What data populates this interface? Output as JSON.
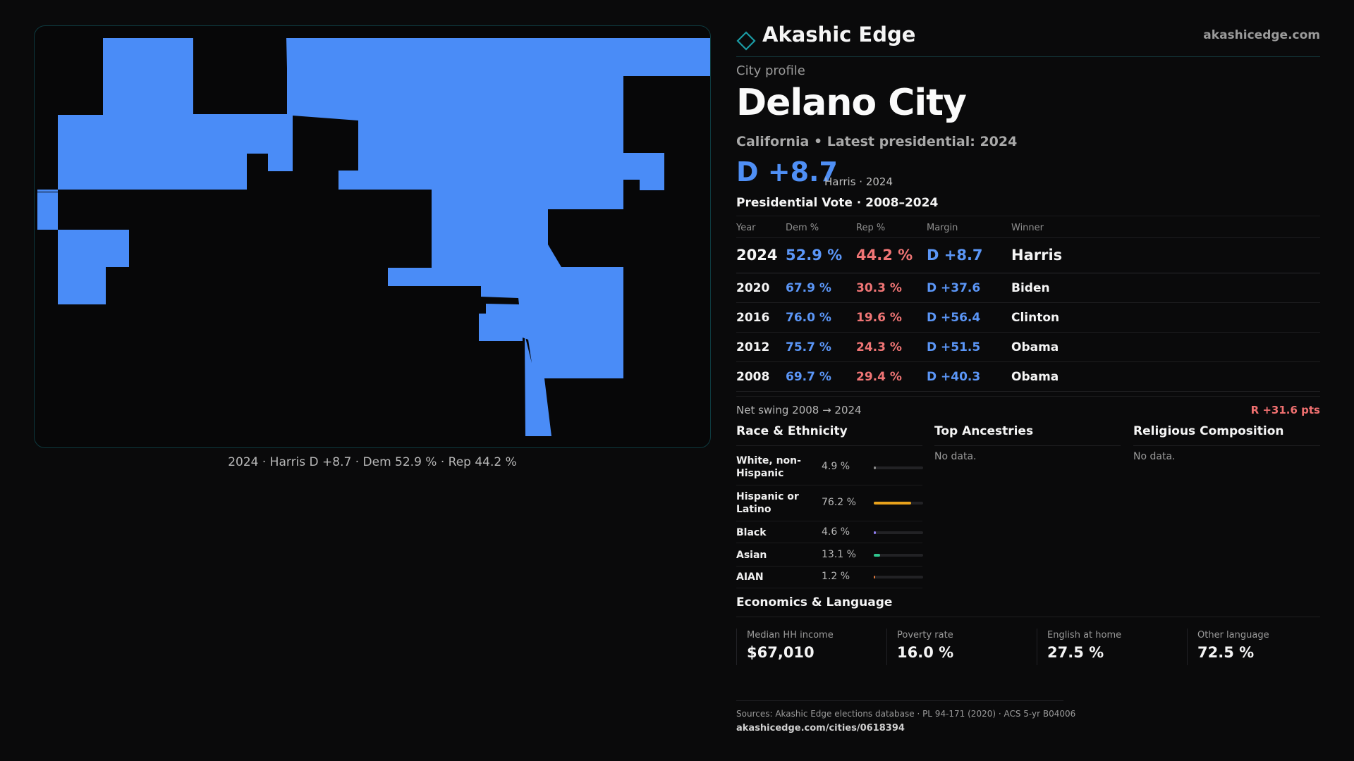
{
  "map": {
    "caption": "2024 · Harris D +8.7 · Dem 52.9 % · Rep 44.2 %",
    "fill_color": "#4a8cf7"
  },
  "brand": {
    "name": "Akashic Edge",
    "url": "akashicedge.com",
    "logo_icon": "diamond-outline-icon",
    "accent": "#1b9aa3"
  },
  "profile": {
    "eyebrow": "City profile",
    "title": "Delano City",
    "subtitle": "California • Latest presidential: 2024",
    "margin": "D +8.7",
    "margin_note": "Harris · 2024"
  },
  "vote_table": {
    "title": "Presidential Vote · 2008–2024",
    "headers": [
      "Year",
      "Dem %",
      "Rep %",
      "Margin",
      "Winner"
    ],
    "rows": [
      {
        "year": "2024",
        "dem": "52.9 %",
        "rep": "44.2 %",
        "margin": "D +8.7",
        "winner": "Harris"
      },
      {
        "year": "2020",
        "dem": "67.9 %",
        "rep": "30.3 %",
        "margin": "D +37.6",
        "winner": "Biden"
      },
      {
        "year": "2016",
        "dem": "76.0 %",
        "rep": "19.6 %",
        "margin": "D +56.4",
        "winner": "Clinton"
      },
      {
        "year": "2012",
        "dem": "75.7 %",
        "rep": "24.3 %",
        "margin": "D +51.5",
        "winner": "Obama"
      },
      {
        "year": "2008",
        "dem": "69.7 %",
        "rep": "29.4 %",
        "margin": "D +40.3",
        "winner": "Obama"
      }
    ]
  },
  "swing": {
    "label": "Net swing 2008 → 2024",
    "value": "R +31.6 pts"
  },
  "race": {
    "title": "Race & Ethnicity",
    "rows": [
      {
        "label": "White, non-Hispanic",
        "value": "4.9 %",
        "pct": 4.9,
        "color": "#8a8a8a"
      },
      {
        "label": "Hispanic or Latino",
        "value": "76.2 %",
        "pct": 76.2,
        "color": "#e8a21c"
      },
      {
        "label": "Black",
        "value": "4.6 %",
        "pct": 4.6,
        "color": "#8f7cf0"
      },
      {
        "label": "Asian",
        "value": "13.1 %",
        "pct": 13.1,
        "color": "#2fc48d"
      },
      {
        "label": "AIAN",
        "value": "1.2 %",
        "pct": 1.2,
        "color": "#e0783a"
      }
    ]
  },
  "ancestries": {
    "title": "Top Ancestries",
    "empty": "No data."
  },
  "religion": {
    "title": "Religious Composition",
    "empty": "No data."
  },
  "economics": {
    "title": "Economics & Language",
    "cells": [
      {
        "label": "Median HH income",
        "value": "$67,010"
      },
      {
        "label": "Poverty rate",
        "value": "16.0 %"
      },
      {
        "label": "English at home",
        "value": "27.5 %"
      },
      {
        "label": "Other language",
        "value": "72.5 %"
      }
    ]
  },
  "footer": {
    "sources": "Sources: Akashic Edge elections database · PL 94-171 (2020) · ACS 5-yr B04006",
    "url": "akashicedge.com/cities/0618394"
  }
}
